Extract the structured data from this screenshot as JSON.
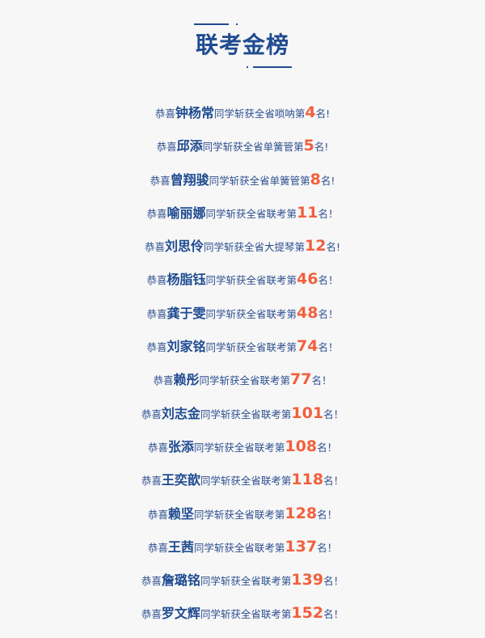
{
  "header": {
    "title": "联考金榜",
    "accent_color": "#1f4b91",
    "highlight_color": "#f2603d"
  },
  "rows": [
    {
      "prefix": "恭喜",
      "name": "钟杨常",
      "middle": "同学斩获全省唢呐第",
      "rank": "4",
      "suffix": "名!"
    },
    {
      "prefix": "恭喜",
      "name": "邱添",
      "middle": "同学斩获全省单簧管第",
      "rank": "5",
      "suffix": "名!"
    },
    {
      "prefix": "恭喜",
      "name": "曾翔骏",
      "middle": "同学斩获全省单簧管第",
      "rank": "8",
      "suffix": "名!"
    },
    {
      "prefix": "恭喜",
      "name": "喻丽娜",
      "middle": "同学斩获全省联考第",
      "rank": "11",
      "suffix": "名！"
    },
    {
      "prefix": "恭喜",
      "name": "刘思伶",
      "middle": "同学斩获全省大提琴第",
      "rank": "12",
      "suffix": "名!"
    },
    {
      "prefix": "恭喜",
      "name": "杨脂钰",
      "middle": "同学斩获全省联考第",
      "rank": "46",
      "suffix": "名！"
    },
    {
      "prefix": "恭喜",
      "name": "龚于雯",
      "middle": "同学斩获全省联考第",
      "rank": "48",
      "suffix": "名！"
    },
    {
      "prefix": "恭喜",
      "name": "刘家铭",
      "middle": "同学斩获全省联考第",
      "rank": "74",
      "suffix": "名！"
    },
    {
      "prefix": "恭喜",
      "name": "赖彤",
      "middle": "同学斩获全省联考第",
      "rank": "77",
      "suffix": "名！"
    },
    {
      "prefix": "恭喜",
      "name": "刘志金",
      "middle": "同学斩获全省联考第",
      "rank": "101",
      "suffix": "名！"
    },
    {
      "prefix": "恭喜",
      "name": "张添",
      "middle": "同学斩获全省联考第",
      "rank": "108",
      "suffix": "名！"
    },
    {
      "prefix": "恭喜",
      "name": "王奕歆",
      "middle": "同学斩获全省联考第",
      "rank": "118",
      "suffix": "名！"
    },
    {
      "prefix": "恭喜",
      "name": "赖坚",
      "middle": "同学斩获全省联考第",
      "rank": "128",
      "suffix": "名！"
    },
    {
      "prefix": "恭喜",
      "name": "王茜",
      "middle": "同学斩获全省联考第",
      "rank": "137",
      "suffix": "名！"
    },
    {
      "prefix": "恭喜",
      "name": "詹璐铭",
      "middle": "同学斩获全省联考第",
      "rank": "139",
      "suffix": "名！"
    },
    {
      "prefix": "恭喜",
      "name": "罗文辉",
      "middle": "同学斩获全省联考第",
      "rank": "152",
      "suffix": "名！"
    }
  ]
}
